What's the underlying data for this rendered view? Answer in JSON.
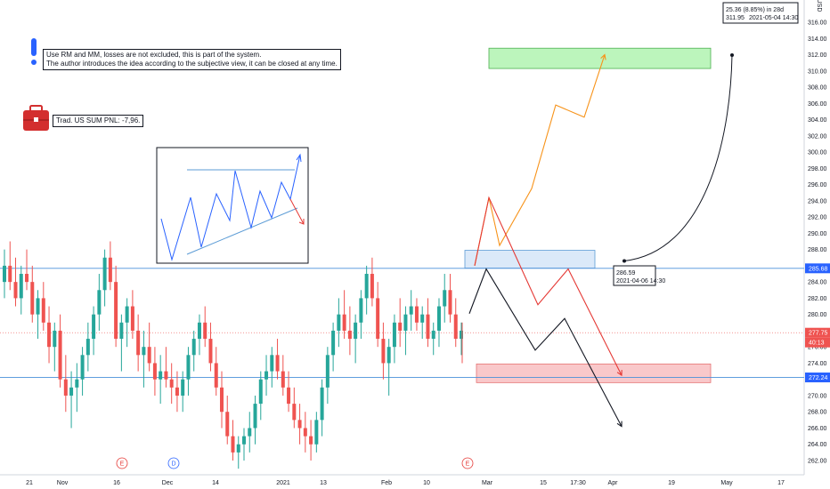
{
  "chart_data": {
    "type": "candlestick",
    "currency": "USD",
    "ylim": [
      261,
      318
    ],
    "y_ticks": [
      262,
      264,
      266,
      268,
      270,
      272,
      274,
      276,
      278,
      280,
      282,
      284,
      286,
      288,
      290,
      292,
      294,
      296,
      298,
      300,
      302,
      304,
      306,
      308,
      310,
      312,
      314,
      316
    ],
    "x_ticks": [
      "21",
      "Nov",
      "16",
      "Dec",
      "14",
      "2021",
      "13",
      "Feb",
      "10",
      "Mar",
      "15",
      "17:30",
      "Apr",
      "19",
      "May",
      "17"
    ],
    "price_tags": [
      {
        "value": "285.68",
        "color": "#2962ff"
      },
      {
        "value": "277.75",
        "color": "#ef5350"
      },
      {
        "value": "40:13",
        "color": "#ef5350"
      },
      {
        "value": "272.24",
        "color": "#2962ff"
      }
    ],
    "horizontal_levels": [
      285.68,
      272.24
    ],
    "last_price": 277.75,
    "events": [
      "E",
      "D",
      "E"
    ],
    "zones": [
      {
        "name": "target",
        "from": 310.3,
        "to": 312.8,
        "color": "#a5f2a5"
      },
      {
        "name": "entry",
        "from": 285.7,
        "to": 287.9,
        "color": "#cfe1f7"
      },
      {
        "name": "stop",
        "from": 271.6,
        "to": 273.9,
        "color": "#f7b5b8"
      }
    ],
    "projections": {
      "bullish": [
        286.0,
        294.4,
        288.5,
        295.5,
        305.8,
        304.3,
        312.0
      ],
      "bearish": [
        286.0,
        294.4,
        281.2,
        285.6,
        272.5
      ],
      "neutral": [
        280.1,
        285.6,
        275.6,
        279.5,
        266.2
      ]
    },
    "candles": [
      [
        284,
        288,
        282,
        286
      ],
      [
        286,
        289,
        283,
        284
      ],
      [
        284,
        287,
        281,
        282
      ],
      [
        282,
        286,
        280,
        285
      ],
      [
        285,
        288,
        283,
        284
      ],
      [
        284,
        286,
        279,
        280
      ],
      [
        280,
        283,
        277,
        282
      ],
      [
        282,
        284,
        278,
        279
      ],
      [
        279,
        281,
        274,
        276
      ],
      [
        276,
        279,
        273,
        278
      ],
      [
        278,
        280,
        271,
        272
      ],
      [
        272,
        275,
        268,
        270
      ],
      [
        270,
        273,
        266,
        271
      ],
      [
        271,
        274,
        268,
        272
      ],
      [
        272,
        276,
        270,
        275
      ],
      [
        275,
        279,
        273,
        277
      ],
      [
        277,
        281,
        275,
        280
      ],
      [
        280,
        285,
        278,
        283
      ],
      [
        283,
        288,
        281,
        287
      ],
      [
        287,
        289,
        283,
        284
      ],
      [
        284,
        286,
        276,
        277
      ],
      [
        277,
        280,
        273,
        279
      ],
      [
        279,
        282,
        276,
        281
      ],
      [
        281,
        283,
        277,
        278
      ],
      [
        278,
        280,
        273,
        275
      ],
      [
        275,
        278,
        271,
        276
      ],
      [
        276,
        279,
        273,
        274
      ],
      [
        274,
        276,
        270,
        272
      ],
      [
        272,
        275,
        269,
        273
      ],
      [
        273,
        276,
        271,
        272
      ],
      [
        272,
        274,
        269,
        271
      ],
      [
        271,
        273,
        268,
        270
      ],
      [
        270,
        273,
        268,
        272
      ],
      [
        272,
        276,
        270,
        275
      ],
      [
        275,
        278,
        273,
        277
      ],
      [
        277,
        280,
        275,
        279
      ],
      [
        279,
        281,
        276,
        277
      ],
      [
        277,
        279,
        273,
        274
      ],
      [
        274,
        276,
        270,
        271
      ],
      [
        271,
        273,
        266,
        268
      ],
      [
        268,
        270,
        264,
        265
      ],
      [
        265,
        267,
        262,
        263
      ],
      [
        263,
        265,
        261,
        264
      ],
      [
        264,
        266,
        262,
        265
      ],
      [
        265,
        268,
        263,
        266
      ],
      [
        266,
        270,
        264,
        269
      ],
      [
        269,
        273,
        267,
        272
      ],
      [
        272,
        275,
        270,
        273
      ],
      [
        273,
        276,
        271,
        275
      ],
      [
        275,
        277,
        272,
        273
      ],
      [
        273,
        275,
        270,
        271
      ],
      [
        271,
        273,
        268,
        269
      ],
      [
        269,
        271,
        266,
        267
      ],
      [
        267,
        269,
        264,
        266
      ],
      [
        266,
        268,
        263,
        265
      ],
      [
        265,
        267,
        262,
        264
      ],
      [
        264,
        268,
        263,
        267
      ],
      [
        267,
        272,
        265,
        271
      ],
      [
        271,
        276,
        269,
        275
      ],
      [
        275,
        279,
        273,
        278
      ],
      [
        278,
        282,
        276,
        280
      ],
      [
        280,
        283,
        277,
        278
      ],
      [
        278,
        281,
        275,
        277
      ],
      [
        277,
        280,
        274,
        279
      ],
      [
        279,
        283,
        277,
        282
      ],
      [
        282,
        286,
        280,
        285
      ],
      [
        285,
        287,
        281,
        282
      ],
      [
        282,
        284,
        276,
        277
      ],
      [
        277,
        279,
        272,
        274
      ],
      [
        274,
        277,
        270,
        276
      ],
      [
        276,
        280,
        274,
        279
      ],
      [
        279,
        282,
        276,
        278
      ],
      [
        278,
        281,
        275,
        280
      ],
      [
        280,
        283,
        278,
        281
      ],
      [
        281,
        282,
        278,
        279
      ],
      [
        279,
        281,
        277,
        280
      ],
      [
        280,
        282,
        276,
        277
      ],
      [
        277,
        279,
        275,
        278
      ],
      [
        278,
        282,
        276,
        281
      ],
      [
        281,
        285,
        279,
        283
      ],
      [
        283,
        285,
        279,
        280
      ],
      [
        280,
        282,
        276,
        277
      ],
      [
        277,
        279,
        275,
        278
      ]
    ]
  },
  "notes": {
    "line1": "Use RM and MM, losses are not excluded, this is part of the system.",
    "line2": "The author introduces the idea according to the subjective view, it can be closed at any time.",
    "pnl": "Trad. US SUM PNL: -7,96."
  },
  "callouts": {
    "entry_price": "286.59",
    "entry_date": "2021-04-06 14:30",
    "target_main": "25.36 (8.85%) in 28d",
    "target_price": "311.95",
    "target_date": "2021-05-04  14:30"
  },
  "colors": {
    "bull": "#26a69a",
    "bear": "#ef5350",
    "level_line": "#4a90d9",
    "pattern_line": "#2962ff",
    "bullish_path": "#f7931a",
    "bearish_path": "#e53935",
    "neutral_path": "#131722"
  }
}
